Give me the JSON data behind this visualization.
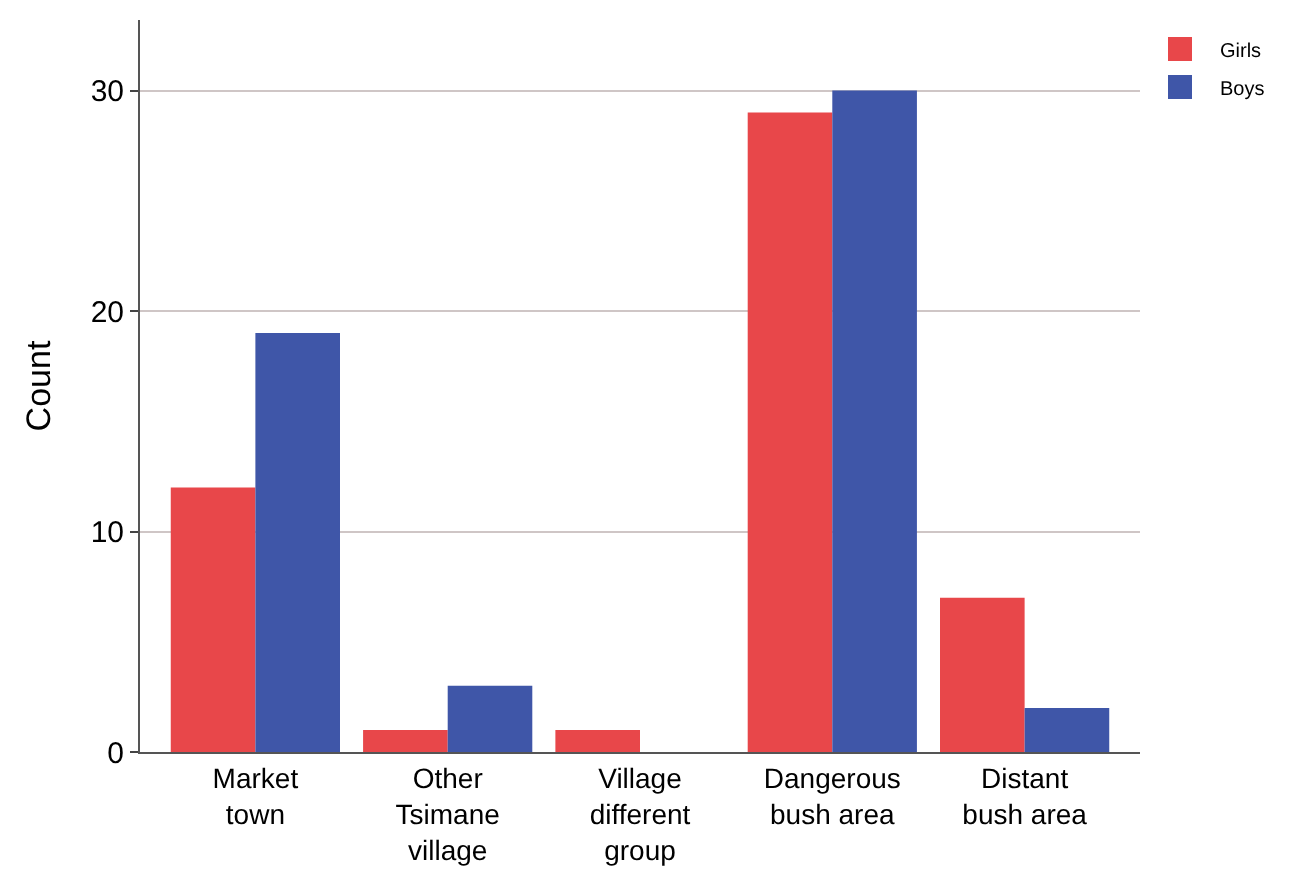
{
  "chart_data": {
    "type": "bar",
    "ylabel": "Count",
    "categories": [
      "Market\ntown",
      "Other\nTsimane\nvillage",
      "Village\ndifferent\ngroup",
      "Dangerous\nbush area",
      "Distant\nbush area"
    ],
    "series": [
      {
        "name": "Girls",
        "color": "#e8474a",
        "values": [
          12,
          1,
          1,
          29,
          7
        ]
      },
      {
        "name": "Boys",
        "color": "#3f56a8",
        "values": [
          19,
          3,
          0,
          30,
          2
        ]
      }
    ],
    "ylim": [
      0,
      33.2
    ],
    "yticks": [
      0,
      10,
      20,
      30
    ],
    "grid": "y",
    "legend": "top right"
  }
}
